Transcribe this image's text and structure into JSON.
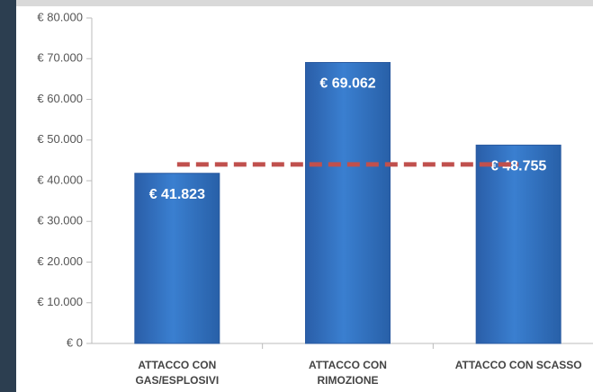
{
  "chart_data": {
    "type": "bar",
    "categories": [
      "ATTACCO CON GAS/ESPLOSIVI",
      "ATTACCO CON RIMOZIONE",
      "ATTACCO CON SCASSO"
    ],
    "values": [
      41823,
      69062,
      48755
    ],
    "value_labels": [
      "€ 41.823",
      "€ 69.062",
      "€ 48.755"
    ],
    "color": "#2f6fc0",
    "ylim": [
      0,
      80000
    ],
    "yticks": [
      {
        "value": 0,
        "label": "€ 0"
      },
      {
        "value": 10000,
        "label": "€ 10.000"
      },
      {
        "value": 20000,
        "label": "€ 20.000"
      },
      {
        "value": 30000,
        "label": "€ 30.000"
      },
      {
        "value": 40000,
        "label": "€ 40.000"
      },
      {
        "value": 50000,
        "label": "€ 50.000"
      },
      {
        "value": 60000,
        "label": "€ 60.000"
      },
      {
        "value": 70000,
        "label": "€ 70.000"
      },
      {
        "value": 80000,
        "label": "€ 80.000"
      }
    ],
    "grid": false,
    "reference_line": {
      "value": 44000,
      "color": "#c0504d"
    }
  }
}
